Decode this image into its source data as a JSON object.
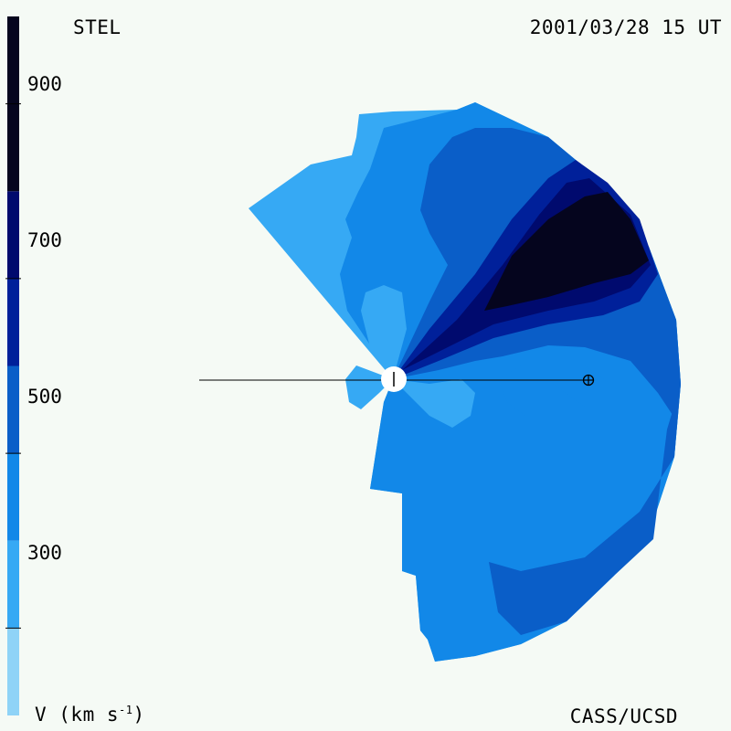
{
  "header": {
    "source": "STEL",
    "timestamp": "2001/03/28 15 UT"
  },
  "footer": {
    "credit": "CASS/UCSD",
    "unit_label": "V (km s",
    "unit_exp": "-1",
    "unit_close": ")"
  },
  "colorbar": {
    "tick_labels": [
      "900",
      "700",
      "500",
      "300"
    ],
    "tick_values": [
      900,
      700,
      500,
      300
    ],
    "range": [
      200,
      1000
    ],
    "levels": [
      {
        "min": 200,
        "max": 300,
        "color": "#8fd3f7"
      },
      {
        "min": 300,
        "max": 400,
        "color": "#36a9f4"
      },
      {
        "min": 400,
        "max": 500,
        "color": "#1288e8"
      },
      {
        "min": 500,
        "max": 600,
        "color": "#0a5ec8"
      },
      {
        "min": 600,
        "max": 700,
        "color": "#00209a"
      },
      {
        "min": 700,
        "max": 800,
        "color": "#000a6e"
      },
      {
        "min": 800,
        "max": 1000,
        "color": "#05051e"
      }
    ]
  },
  "markers": {
    "sun_icon": "circle-with-tick",
    "earth_icon": "circled-plus"
  }
}
